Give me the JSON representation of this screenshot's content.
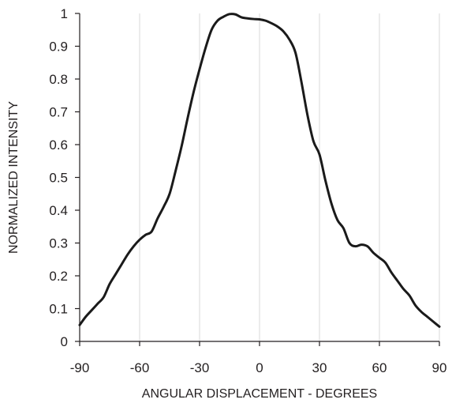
{
  "chart_data": {
    "type": "line",
    "title": "",
    "xlabel": "ANGULAR DISPLACEMENT - DEGREES",
    "ylabel": "NORMALIZED INTENSITY",
    "xlim": [
      -90,
      90
    ],
    "ylim": [
      0,
      1
    ],
    "x_ticks": [
      -90,
      -60,
      -30,
      0,
      30,
      60,
      90
    ],
    "y_ticks": [
      0,
      0.1,
      0.2,
      0.3,
      0.4,
      0.5,
      0.6,
      0.7,
      0.8,
      0.9,
      1
    ],
    "x_tick_labels": [
      "-90",
      "-60",
      "-30",
      "0",
      "30",
      "60",
      "90"
    ],
    "y_tick_labels": [
      "0",
      "0.1",
      "0.2",
      "0.3",
      "0.4",
      "0.5",
      "0.6",
      "0.7",
      "0.8",
      "0.9",
      "1"
    ],
    "grid": "vertical",
    "legend": "none",
    "line_color": "#1a1a1a",
    "grid_color": "#d9d9d9",
    "series": [
      {
        "x": [
          -90,
          -87,
          -84,
          -81,
          -78,
          -75,
          -72,
          -69,
          -66,
          -63,
          -60,
          -57,
          -54,
          -51,
          -48,
          -45,
          -42,
          -39,
          -36,
          -33,
          -30,
          -27,
          -24,
          -21,
          -18,
          -15,
          -12,
          -9,
          -6,
          -3,
          0,
          3,
          6,
          9,
          12,
          15,
          18,
          21,
          24,
          27,
          30,
          33,
          36,
          39,
          42,
          45,
          48,
          51,
          54,
          57,
          60,
          63,
          66,
          69,
          72,
          75,
          78,
          81,
          84,
          87,
          90
        ],
        "values": [
          0.05,
          0.075,
          0.095,
          0.115,
          0.135,
          0.175,
          0.205,
          0.235,
          0.265,
          0.29,
          0.31,
          0.325,
          0.335,
          0.375,
          0.41,
          0.45,
          0.52,
          0.595,
          0.68,
          0.76,
          0.83,
          0.895,
          0.95,
          0.978,
          0.99,
          0.998,
          0.997,
          0.988,
          0.985,
          0.983,
          0.982,
          0.978,
          0.97,
          0.96,
          0.945,
          0.92,
          0.88,
          0.79,
          0.69,
          0.61,
          0.57,
          0.49,
          0.42,
          0.37,
          0.345,
          0.3,
          0.29,
          0.295,
          0.29,
          0.27,
          0.255,
          0.24,
          0.21,
          0.185,
          0.16,
          0.14,
          0.11,
          0.09,
          0.075,
          0.06,
          0.045
        ]
      }
    ]
  }
}
